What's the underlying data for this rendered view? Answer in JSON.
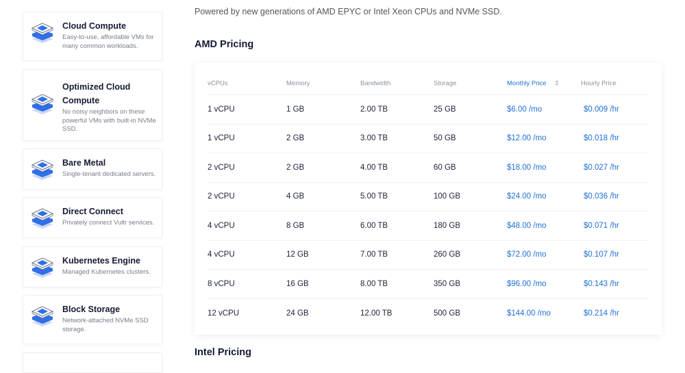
{
  "intro": "Powered by new generations of AMD EPYC or Intel Xeon CPUs and NVMe SSD.",
  "sidebar": [
    {
      "title": "Cloud Compute",
      "desc": "Easy-to-use, affordable VMs for many common workloads.",
      "icon": "cloud-compute-icon"
    },
    {
      "title": "Optimized Cloud Compute",
      "desc": "No noisy neighbors on these powerful VMs with built-in NVMe SSD.",
      "icon": "optimized-compute-icon"
    },
    {
      "title": "Bare Metal",
      "desc": "Single-tenant dedicated servers.",
      "icon": "bare-metal-icon"
    },
    {
      "title": "Direct Connect",
      "desc": "Privately connect Vultr services.",
      "icon": "direct-connect-icon"
    },
    {
      "title": "Kubernetes Engine",
      "desc": "Managed Kubernetes clusters.",
      "icon": "kubernetes-icon"
    },
    {
      "title": "Block Storage",
      "desc": "Network-attached NVMe SSD storage.",
      "icon": "block-storage-icon"
    }
  ],
  "amd": {
    "title": "AMD Pricing",
    "headers": [
      "vCPUs",
      "Memory",
      "Bandwidth",
      "Storage",
      "Monthly Price",
      "Hourly Price"
    ],
    "rows": [
      [
        "1 vCPU",
        "1 GB",
        "2.00 TB",
        "25 GB",
        "$6.00 /mo",
        "$0.009 /hr"
      ],
      [
        "1 vCPU",
        "2 GB",
        "3.00 TB",
        "50 GB",
        "$12.00 /mo",
        "$0.018 /hr"
      ],
      [
        "2 vCPU",
        "2 GB",
        "4.00 TB",
        "60 GB",
        "$18.00 /mo",
        "$0.027 /hr"
      ],
      [
        "2 vCPU",
        "4 GB",
        "5.00 TB",
        "100 GB",
        "$24.00 /mo",
        "$0.036 /hr"
      ],
      [
        "4 vCPU",
        "8 GB",
        "6.00 TB",
        "180 GB",
        "$48.00 /mo",
        "$0.071 /hr"
      ],
      [
        "4 vCPU",
        "12 GB",
        "7.00 TB",
        "260 GB",
        "$72.00 /mo",
        "$0.107 /hr"
      ],
      [
        "8 vCPU",
        "16 GB",
        "8.00 TB",
        "350 GB",
        "$96.00 /mo",
        "$0.143 /hr"
      ],
      [
        "12 vCPU",
        "24 GB",
        "12.00 TB",
        "500 GB",
        "$144.00 /mo",
        "$0.214 /hr"
      ]
    ]
  },
  "intel": {
    "title": "Intel Pricing"
  },
  "colors": {
    "accent": "#1e6fd9"
  }
}
